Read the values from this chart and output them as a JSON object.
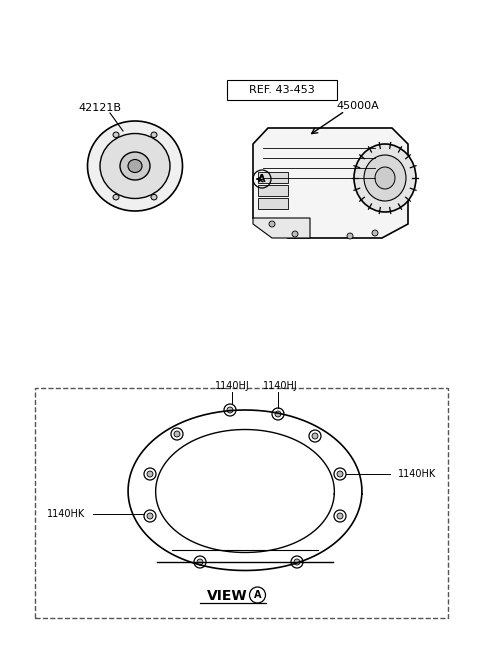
{
  "bg_color": "#ffffff",
  "line_color": "#000000",
  "label_42121B": "42121B",
  "label_ref": "REF. 43-453",
  "label_45000A": "45000A",
  "label_A_circle": "A",
  "label_VIEW": "VIEW",
  "label_VIEW_A_circle": "A",
  "label_1140HJ_1": "1140HJ",
  "label_1140HJ_2": "1140HJ",
  "label_1140HK_left": "1140HK",
  "label_1140HK_right": "1140HK"
}
